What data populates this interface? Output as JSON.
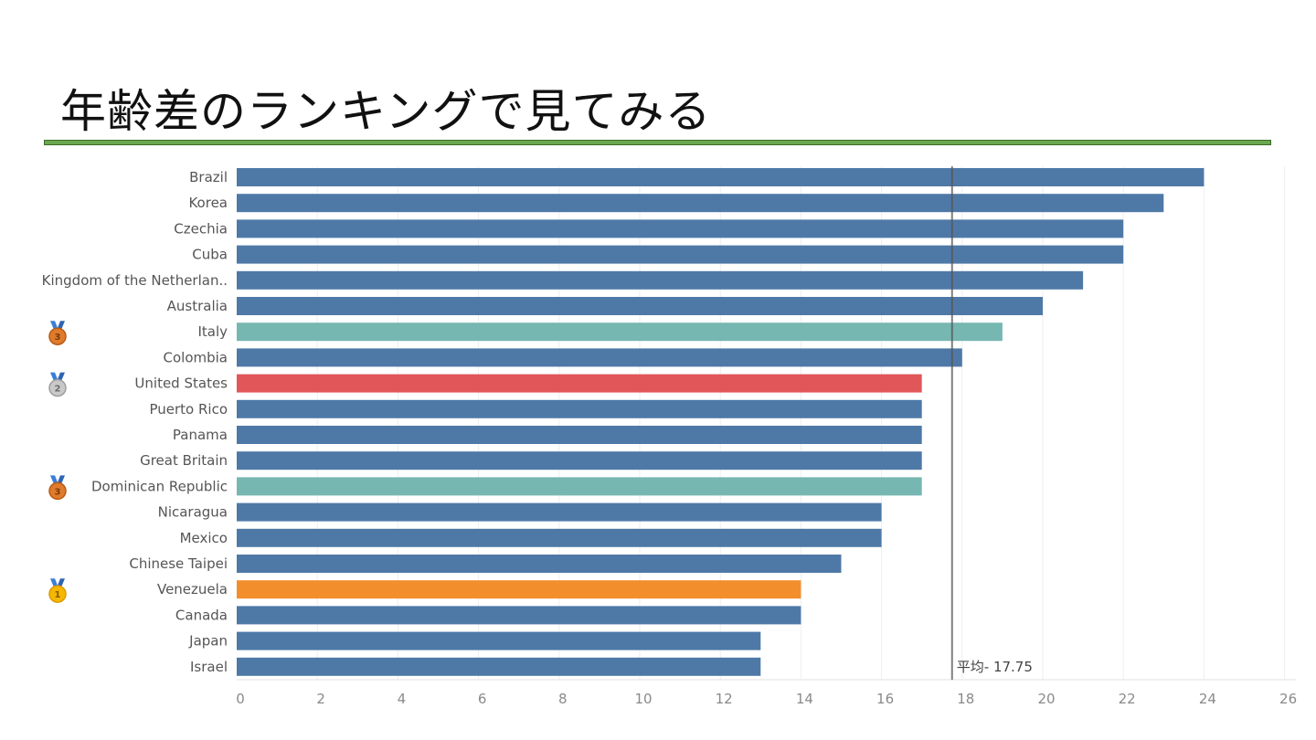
{
  "slide": {
    "title": "年齢差のランキングで見てみる"
  },
  "colors": {
    "default_bar": "#4e79a7",
    "highlight_teal": "#76b7b2",
    "highlight_red": "#e15759",
    "highlight_orange": "#f28e2b",
    "rule_green": "#6aa84f"
  },
  "chart_data": {
    "type": "bar",
    "orientation": "horizontal",
    "categories": [
      "Brazil",
      "Korea",
      "Czechia",
      "Cuba",
      "Kingdom of the Netherlan..",
      "Australia",
      "Italy",
      "Colombia",
      "United States",
      "Puerto Rico",
      "Panama",
      "Great Britain",
      "Dominican Republic",
      "Nicaragua",
      "Mexico",
      "Chinese Taipei",
      "Venezuela",
      "Canada",
      "Japan",
      "Israel"
    ],
    "values": [
      24,
      23,
      22,
      22,
      21,
      20,
      19,
      18,
      17,
      17,
      17,
      17,
      17,
      16,
      16,
      15,
      14,
      14,
      13,
      13
    ],
    "bar_colors": [
      "default",
      "default",
      "default",
      "default",
      "default",
      "default",
      "teal",
      "default",
      "red",
      "default",
      "default",
      "default",
      "teal",
      "default",
      "default",
      "default",
      "orange",
      "default",
      "default",
      "default"
    ],
    "medals": [
      {
        "category": "Italy",
        "rank": "3",
        "kind": "bronze",
        "icon": "bronze-medal-icon"
      },
      {
        "category": "United States",
        "rank": "2",
        "kind": "silver",
        "icon": "silver-medal-icon"
      },
      {
        "category": "Dominican Republic",
        "rank": "3",
        "kind": "bronze",
        "icon": "bronze-medal-icon"
      },
      {
        "category": "Venezuela",
        "rank": "1",
        "kind": "gold",
        "icon": "gold-medal-icon"
      }
    ],
    "xlim": [
      0,
      26
    ],
    "xticks": [
      0,
      2,
      4,
      6,
      8,
      10,
      12,
      14,
      16,
      18,
      20,
      22,
      24,
      26
    ],
    "reference_line": {
      "value": 17.75,
      "label": "平均- 17.75"
    },
    "grid": true
  }
}
